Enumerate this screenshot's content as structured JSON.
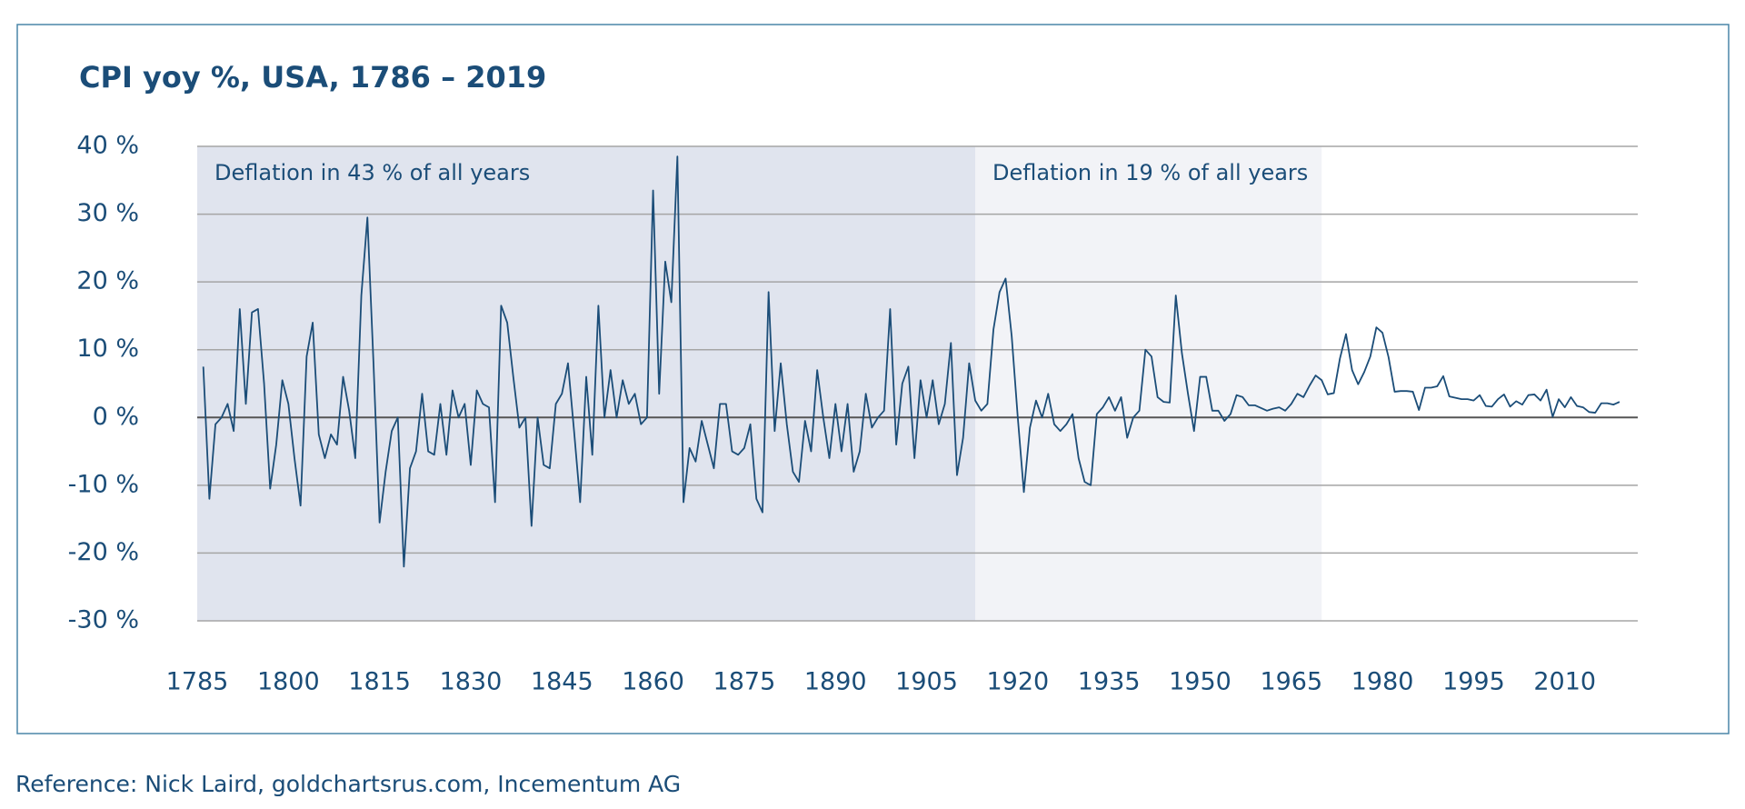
{
  "chart_data": {
    "type": "line",
    "title": "CPI yoy %, USA, 1786 – 2019",
    "source": "Reference: Nick Laird, goldchartsrus.com, Incementum AG",
    "color": "#1b4d78",
    "grid": true,
    "xlim": [
      1785,
      2022
    ],
    "ylim": [
      -30,
      40
    ],
    "xticks": [
      1785,
      1800,
      1815,
      1830,
      1845,
      1860,
      1875,
      1890,
      1905,
      1920,
      1935,
      1950,
      1965,
      1980,
      1995,
      2010
    ],
    "yticks": [
      {
        "value": -30,
        "label": "-30 %"
      },
      {
        "value": -20,
        "label": "-20 %"
      },
      {
        "value": -10,
        "label": "-10 %"
      },
      {
        "value": 0,
        "label": "0 %"
      },
      {
        "value": 10,
        "label": "10 %"
      },
      {
        "value": 20,
        "label": "20 %"
      },
      {
        "value": 30,
        "label": "30 %"
      },
      {
        "value": 40,
        "label": "40 %"
      }
    ],
    "shaded_regions": [
      {
        "start": 1785,
        "end": 1913,
        "color": "#e0e4ee",
        "label": "Deflation in 43 % of all years"
      },
      {
        "start": 1913,
        "end": 1970,
        "color": "#f2f3f7",
        "label": "Deflation in 19 % of all years"
      }
    ],
    "x": [
      1786,
      1787,
      1788,
      1789,
      1790,
      1791,
      1792,
      1793,
      1794,
      1795,
      1796,
      1797,
      1798,
      1799,
      1800,
      1801,
      1802,
      1803,
      1804,
      1805,
      1806,
      1807,
      1808,
      1809,
      1810,
      1811,
      1812,
      1813,
      1814,
      1815,
      1816,
      1817,
      1818,
      1819,
      1820,
      1821,
      1822,
      1823,
      1824,
      1825,
      1826,
      1827,
      1828,
      1829,
      1830,
      1831,
      1832,
      1833,
      1834,
      1835,
      1836,
      1837,
      1838,
      1839,
      1840,
      1841,
      1842,
      1843,
      1844,
      1845,
      1846,
      1847,
      1848,
      1849,
      1850,
      1851,
      1852,
      1853,
      1854,
      1855,
      1856,
      1857,
      1858,
      1859,
      1860,
      1861,
      1862,
      1863,
      1864,
      1865,
      1866,
      1867,
      1868,
      1869,
      1870,
      1871,
      1872,
      1873,
      1874,
      1875,
      1876,
      1877,
      1878,
      1879,
      1880,
      1881,
      1882,
      1883,
      1884,
      1885,
      1886,
      1887,
      1888,
      1889,
      1890,
      1891,
      1892,
      1893,
      1894,
      1895,
      1896,
      1897,
      1898,
      1899,
      1900,
      1901,
      1902,
      1903,
      1904,
      1905,
      1906,
      1907,
      1908,
      1909,
      1910,
      1911,
      1912,
      1913,
      1914,
      1915,
      1916,
      1917,
      1918,
      1919,
      1920,
      1921,
      1922,
      1923,
      1924,
      1925,
      1926,
      1927,
      1928,
      1929,
      1930,
      1931,
      1932,
      1933,
      1934,
      1935,
      1936,
      1937,
      1938,
      1939,
      1940,
      1941,
      1942,
      1943,
      1944,
      1945,
      1946,
      1947,
      1948,
      1949,
      1950,
      1951,
      1952,
      1953,
      1954,
      1955,
      1956,
      1957,
      1958,
      1959,
      1960,
      1961,
      1962,
      1963,
      1964,
      1965,
      1966,
      1967,
      1968,
      1969,
      1970,
      1971,
      1972,
      1973,
      1974,
      1975,
      1976,
      1977,
      1978,
      1979,
      1980,
      1981,
      1982,
      1983,
      1984,
      1985,
      1986,
      1987,
      1988,
      1989,
      1990,
      1991,
      1992,
      1993,
      1994,
      1995,
      1996,
      1997,
      1998,
      1999,
      2000,
      2001,
      2002,
      2003,
      2004,
      2005,
      2006,
      2007,
      2008,
      2009,
      2010,
      2011,
      2012,
      2013,
      2014,
      2015,
      2016,
      2017,
      2018,
      2019
    ],
    "values": [
      7.5,
      -12,
      -1,
      0,
      2,
      -2,
      16,
      2,
      15.5,
      16,
      5,
      -10.5,
      -4,
      5.5,
      2,
      -6,
      -13,
      9,
      14,
      -2.5,
      -6,
      -2.5,
      -4,
      6,
      1,
      -6,
      18,
      29.5,
      8,
      -15.5,
      -8,
      -2,
      0,
      -22,
      -7.5,
      -5,
      3.5,
      -5,
      -5.5,
      2,
      -5.5,
      4,
      0,
      2,
      -7,
      4,
      2,
      1.5,
      -12.5,
      16.5,
      14,
      6,
      -1.5,
      0,
      -16,
      0,
      -7,
      -7.5,
      2,
      3.5,
      8,
      -2,
      -12.5,
      6,
      -5.5,
      16.5,
      0,
      7,
      0,
      5.5,
      2,
      3.5,
      -1,
      0,
      33.5,
      3.5,
      23,
      17,
      38.5,
      -12.5,
      -4.5,
      -6.5,
      -0.5,
      -4,
      -7.5,
      2,
      2,
      -5,
      -5.5,
      -4.5,
      -1,
      -12,
      -14,
      18.5,
      -2,
      8,
      -1,
      -8,
      -9.5,
      -0.5,
      -5,
      7,
      0,
      -6,
      2,
      -5,
      2,
      -8,
      -5,
      3.5,
      -1.5,
      0,
      1,
      16,
      -4,
      5,
      7.5,
      -6,
      5.5,
      0,
      5.5,
      -1,
      2,
      11,
      -8.5,
      -3,
      8,
      2.5,
      1,
      2,
      13,
      18.5,
      20.5,
      12,
      0,
      -11,
      -1.5,
      2.5,
      0,
      3.5,
      -1,
      -2,
      -1,
      0.5,
      -6,
      -9.5,
      -10,
      0.5,
      1.5,
      3,
      1,
      3,
      -3,
      0,
      1,
      10,
      9,
      3,
      2.3,
      2.2,
      18,
      9.5,
      3.5,
      -2,
      6,
      6,
      1,
      1,
      -0.5,
      0.5,
      3.3,
      3,
      1.8,
      1.8,
      1.4,
      1,
      1.3,
      1.5,
      1,
      2,
      3.5,
      3,
      4.7,
      6.2,
      5.5,
      3.4,
      3.6,
      8.7,
      12.3,
      7,
      4.9,
      6.7,
      9,
      13.3,
      12.5,
      8.9,
      3.8,
      3.9,
      3.9,
      3.8,
      1.1,
      4.4,
      4.4,
      4.6,
      6.1,
      3.1,
      2.9,
      2.7,
      2.7,
      2.5,
      3.3,
      1.7,
      1.6,
      2.7,
      3.4,
      1.6,
      2.4,
      1.9,
      3.3,
      3.4,
      2.5,
      4.1,
      0.1,
      2.7,
      1.5,
      3.0,
      1.7,
      1.5,
      0.8,
      0.7,
      2.1,
      2.1,
      1.9,
      2.3
    ]
  }
}
